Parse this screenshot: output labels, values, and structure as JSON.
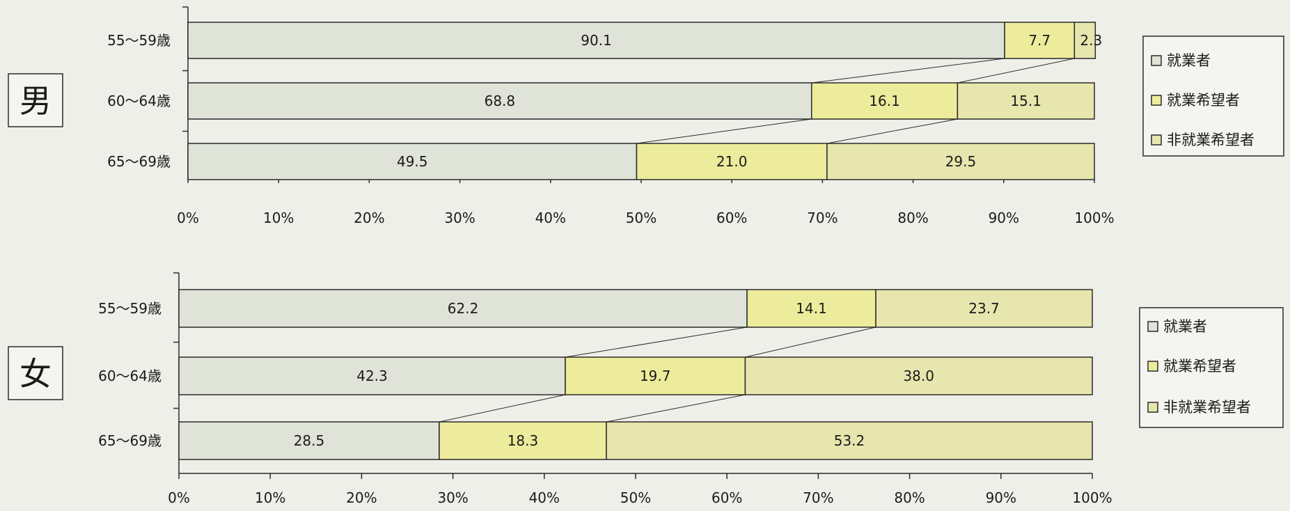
{
  "chart_data": [
    {
      "type": "bar",
      "stacked": true,
      "orientation": "horizontal",
      "panel_label": "男",
      "categories": [
        "55～59歳",
        "60～64歳",
        "65～69歳"
      ],
      "series": [
        {
          "name": "就業者",
          "values": [
            90.1,
            68.8,
            49.5
          ]
        },
        {
          "name": "就業希望者",
          "values": [
            7.7,
            16.1,
            21.0
          ]
        },
        {
          "name": "非就業希望者",
          "values": [
            2.3,
            15.1,
            29.5
          ]
        }
      ],
      "data_labels": [
        [
          "90.1",
          "68.8",
          "49.5"
        ],
        [
          "7.7",
          "16.1",
          "21.0"
        ],
        [
          "2.3",
          "15.1",
          "29.5"
        ]
      ],
      "x_ticks": [
        "0%",
        "10%",
        "20%",
        "30%",
        "40%",
        "50%",
        "60%",
        "70%",
        "80%",
        "90%",
        "100%"
      ],
      "xlim": [
        0,
        100
      ],
      "grid": false,
      "connector_lines": true,
      "legend_position": "right"
    },
    {
      "type": "bar",
      "stacked": true,
      "orientation": "horizontal",
      "panel_label": "女",
      "categories": [
        "55～59歳",
        "60～64歳",
        "65～69歳"
      ],
      "series": [
        {
          "name": "就業者",
          "values": [
            62.2,
            42.3,
            28.5
          ]
        },
        {
          "name": "就業希望者",
          "values": [
            14.1,
            19.7,
            18.3
          ]
        },
        {
          "name": "非就業希望者",
          "values": [
            23.7,
            38.0,
            53.2
          ]
        }
      ],
      "data_labels": [
        [
          "62.2",
          "42.3",
          "28.5"
        ],
        [
          "14.1",
          "19.7",
          "18.3"
        ],
        [
          "23.7",
          "38.0",
          "53.2"
        ]
      ],
      "x_ticks": [
        "0%",
        "10%",
        "20%",
        "30%",
        "40%",
        "50%",
        "60%",
        "70%",
        "80%",
        "90%",
        "100%"
      ],
      "xlim": [
        0,
        100
      ],
      "grid": false,
      "connector_lines": true,
      "legend_position": "right"
    }
  ],
  "colors": {
    "background": "#efefe9",
    "series": [
      "#dfe3d8",
      "#ecec9c",
      "#e6e6ae"
    ],
    "line": "#2a2a2a",
    "text": "#1a1a1a"
  }
}
